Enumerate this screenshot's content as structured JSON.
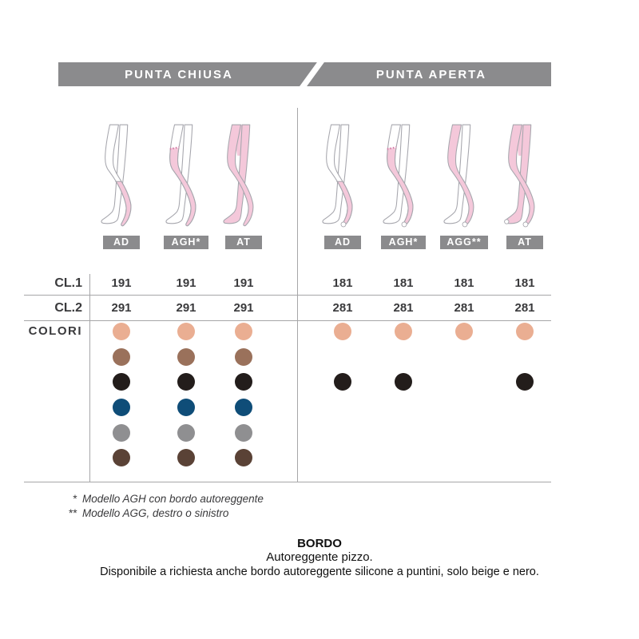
{
  "header": {
    "left_tab": "PUNTA CHIUSA",
    "right_tab": "PUNTA APERTA"
  },
  "row_labels": {
    "cl1": "CL.1",
    "cl2": "CL.2",
    "colori": "COLORI"
  },
  "sections": [
    {
      "title": "PUNTA CHIUSA",
      "toe": "closed",
      "columns": [
        {
          "model": "AD",
          "coverage": "knee",
          "cl1": "191",
          "cl2": "291",
          "colors": [
            "beige",
            "brown",
            "black",
            "blue",
            "grey",
            "dark-brown"
          ]
        },
        {
          "model": "AGH*",
          "coverage": "thigh",
          "cl1": "191",
          "cl2": "291",
          "colors": [
            "beige",
            "brown",
            "black",
            "blue",
            "grey",
            "dark-brown"
          ]
        },
        {
          "model": "AT",
          "coverage": "tights",
          "cl1": "191",
          "cl2": "291",
          "colors": [
            "beige",
            "brown",
            "black",
            "blue",
            "grey",
            "dark-brown"
          ]
        }
      ]
    },
    {
      "title": "PUNTA APERTA",
      "toe": "open",
      "columns": [
        {
          "model": "AD",
          "coverage": "knee",
          "cl1": "181",
          "cl2": "281",
          "colors": [
            "beige",
            "black"
          ]
        },
        {
          "model": "AGH*",
          "coverage": "thigh",
          "cl1": "181",
          "cl2": "281",
          "colors": [
            "beige",
            "black"
          ]
        },
        {
          "model": "AGG**",
          "coverage": "single",
          "cl1": "181",
          "cl2": "281",
          "colors": [
            "beige"
          ]
        },
        {
          "model": "AT",
          "coverage": "tights",
          "cl1": "181",
          "cl2": "281",
          "colors": [
            "beige",
            "black"
          ]
        }
      ]
    }
  ],
  "color_rows_order": [
    "beige",
    "brown",
    "black",
    "blue",
    "grey",
    "dark-brown"
  ],
  "palette": {
    "beige": "#eaae92",
    "brown": "#9a715b",
    "black": "#231d1b",
    "blue": "#0f4d78",
    "grey": "#8f8f91",
    "dark-brown": "#5a4236"
  },
  "theme": {
    "bar_grey": "#8b8b8d",
    "line_grey": "#a6a6a8",
    "text_dark": "#3a3a3c",
    "stocking_pink": "#f4c8da",
    "leg_outline": "#a6a6ad",
    "lace_band": "#d37fa9"
  },
  "footnotes": [
    {
      "marker": "*",
      "text": "Modello AGH con bordo autoreggente"
    },
    {
      "marker": "**",
      "text": "Modello AGG, destro o sinistro"
    }
  ],
  "footer": {
    "title": "BORDO",
    "line1": "Autoreggente pizzo.",
    "line2": "Disponibile a richiesta anche bordo autoreggente silicone a puntini, solo beige e nero."
  }
}
